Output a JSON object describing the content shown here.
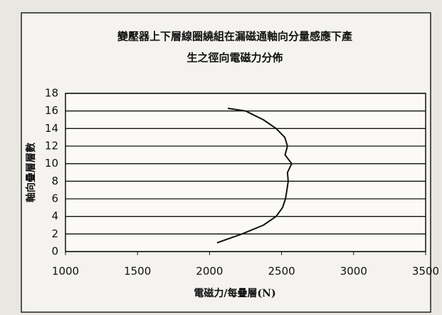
{
  "chart_data": {
    "type": "line",
    "title": [
      "變壓器上下層線圈繞組在漏磁通軸向分量感應下產",
      "生之徑向電磁力分佈"
    ],
    "x_label": "電磁力/每疊層(N)",
    "y_label": "軸向疊層層數",
    "series": [
      {
        "name": null,
        "color": "#111111",
        "x": [
          2052,
          2225,
          2373,
          2462,
          2507,
          2527,
          2537,
          2546,
          2541,
          2570,
          2524,
          2541,
          2522,
          2462,
          2373,
          2250,
          2127
        ],
        "values": [
          1,
          2,
          3,
          4,
          5,
          6,
          7,
          8,
          9,
          10,
          11,
          12,
          13,
          14,
          15,
          16,
          16.3
        ]
      }
    ],
    "xlim": [
      1000,
      3500
    ],
    "xticks": [
      1000,
      1500,
      2000,
      2500,
      3000,
      3500
    ],
    "ylim": [
      0,
      18
    ],
    "yticks": [
      0,
      2,
      4,
      6,
      8,
      10,
      12,
      14,
      16,
      18
    ],
    "grid": true
  }
}
